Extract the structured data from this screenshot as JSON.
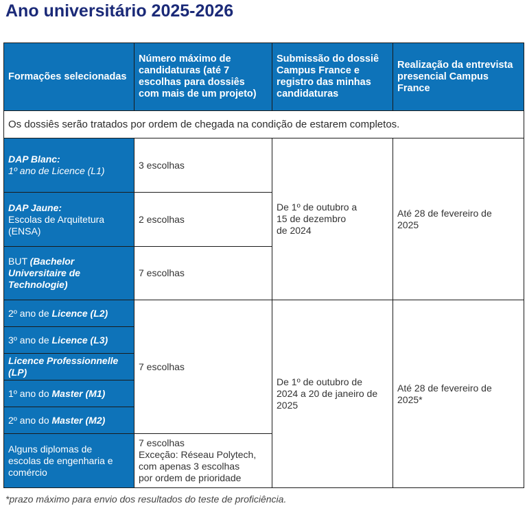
{
  "title": "Ano universitário 2025-2026",
  "headers": {
    "formacoes": "Formações selecionadas",
    "numero": "Número máximo de candidaturas (até 7 escolhas para dossiês com mais de um projeto)",
    "submissao": "Submissão do dossiê Campus France e registro das minhas candidaturas",
    "entrevista": "Realização da entrevista presencial Campus France"
  },
  "note": "Os dossiês serão tratados por ordem de chegada na condição de estarem completos.",
  "rows": {
    "dap_blanc": {
      "title": "DAP Blanc:",
      "line": "1º ano de Licence (L1)",
      "choices": "3 escolhas"
    },
    "dap_jaune": {
      "title": "DAP Jaune:",
      "line1": "Escolas de Arquitetura",
      "line2": "(ENSA)",
      "choices": "2 escolhas"
    },
    "but": {
      "prefix": "BUT ",
      "em1": "(Bachelor",
      "em2": "Universitaire de",
      "em3": "Technologie)",
      "choices": "7 escolhas"
    },
    "l2": {
      "prefix": "2º ano de ",
      "em": "Licence (L2)"
    },
    "l3": {
      "prefix": "3º ano de ",
      "em": "Licence (L3)"
    },
    "lp": {
      "em1": "Licence Professionnelle",
      "em2": "(LP)"
    },
    "m1": {
      "prefix": "1º ano do ",
      "em": "Master (M1)"
    },
    "m2": {
      "prefix": "2º ano do ",
      "em": "Master (M2)"
    },
    "group2_choices": "7 escolhas",
    "eng": {
      "line1": "Alguns diplomas de",
      "line2": "escolas de engenharia e",
      "line3": "comércio",
      "choices1": "7 escolhas",
      "choices2": "Exceção: Réseau Polytech,",
      "choices3": "com apenas 3 escolhas",
      "choices4": "por ordem de prioridade"
    }
  },
  "dates": {
    "sub1_line1": "De 1º de outubro a",
    "sub1_line2": "15 de dezembro",
    "sub1_line3": "de 2024",
    "ent1_line1": "Até 28 de fevereiro de",
    "ent1_line2": "2025",
    "sub2_line1": "De 1º de outubro de",
    "sub2_line2": "2024 a 20 de janeiro de",
    "sub2_line3": "2025",
    "ent2_line1": "Até 28 de fevereiro de",
    "ent2_line2": "2025*"
  },
  "footnote": "*prazo máximo para envio dos resultados do teste de proficiência.",
  "colors": {
    "header_blue": "#0e73b9",
    "title_navy": "#1b2a78"
  }
}
